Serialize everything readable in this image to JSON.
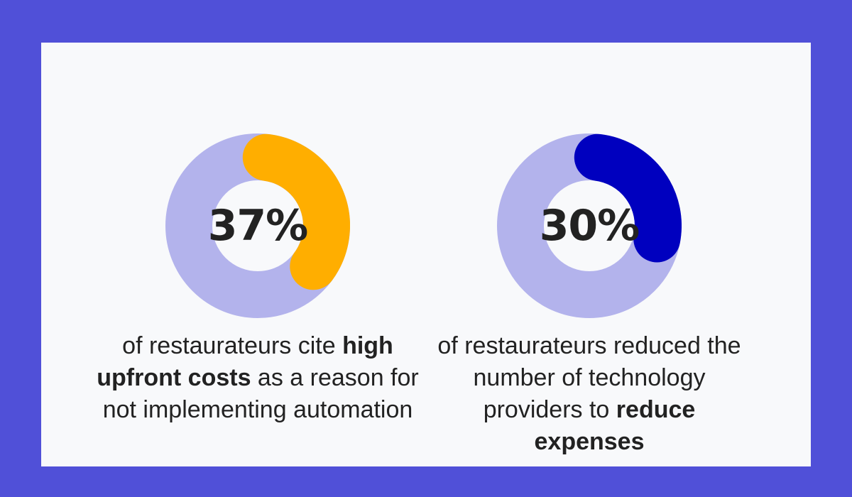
{
  "colors": {
    "background": "#5050d8",
    "card": "#f8f9fb",
    "track": "#b3b3ec",
    "text": "#222222"
  },
  "chart_data": [
    {
      "type": "pie",
      "variant": "donut",
      "value_label": "37%",
      "values": [
        37,
        63
      ],
      "categories": [
        "highlighted",
        "remaining"
      ],
      "highlight_color": "#ffae00",
      "caption": {
        "before": "of restaurateurs cite ",
        "highlight": "high upfront costs",
        "after": " as a reason for not implementing automation"
      }
    },
    {
      "type": "pie",
      "variant": "donut",
      "value_label": "30%",
      "values": [
        30,
        70
      ],
      "categories": [
        "highlighted",
        "remaining"
      ],
      "highlight_color": "#0000bf",
      "caption": {
        "before": "of restaurateurs reduced the number of technology providers to ",
        "highlight": "reduce expenses",
        "after": ""
      }
    }
  ]
}
